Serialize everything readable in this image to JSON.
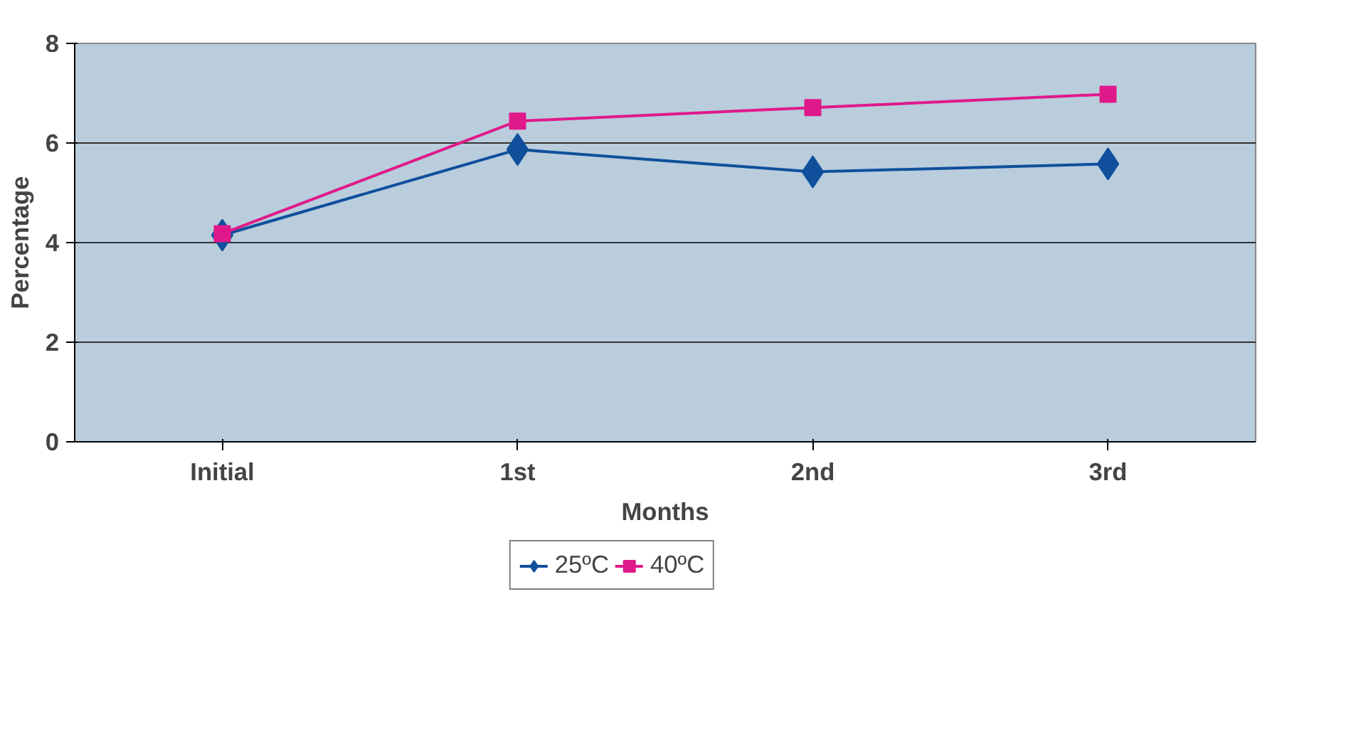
{
  "chart_data": {
    "type": "line",
    "xlabel": "Months",
    "ylabel": "Percentage",
    "categories": [
      "Initial",
      "1st",
      "2nd",
      "3rd"
    ],
    "series": [
      {
        "name": "25ºC",
        "color": "#0f4f9c",
        "marker": "diamond",
        "values": [
          4.15,
          5.87,
          5.42,
          5.58
        ]
      },
      {
        "name": "40ºC",
        "color": "#e0198a",
        "marker": "square",
        "values": [
          4.18,
          6.44,
          6.71,
          6.98
        ]
      }
    ],
    "ylim": [
      0,
      8
    ],
    "yticks": [
      0,
      2,
      4,
      6,
      8
    ],
    "grid": "y",
    "legend": "bottom",
    "line_style": "solid"
  }
}
